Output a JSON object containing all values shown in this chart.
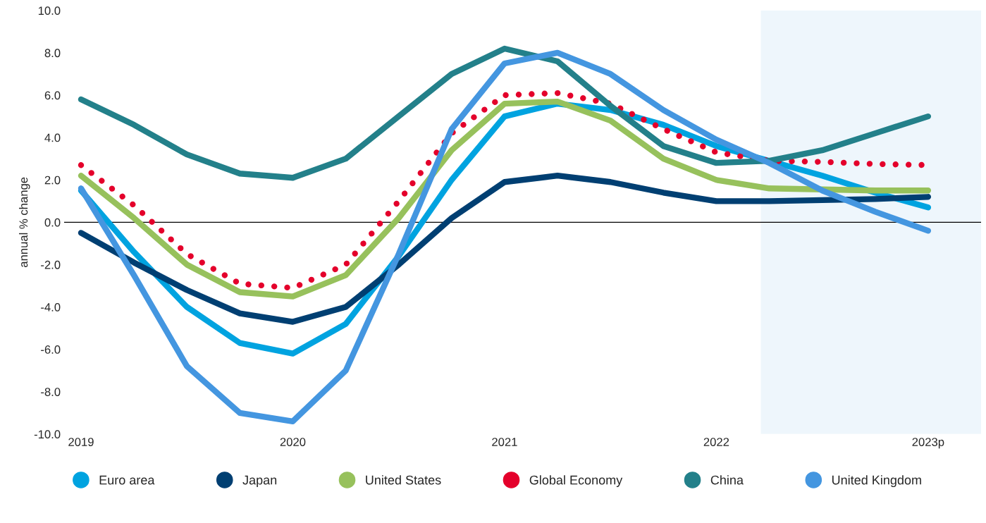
{
  "chart_data": {
    "type": "line",
    "ylabel": "annual % change",
    "x": [
      2019,
      2019.25,
      2019.5,
      2019.75,
      2020,
      2020.25,
      2020.5,
      2020.75,
      2021,
      2021.25,
      2021.5,
      2021.75,
      2022,
      2022.25,
      2022.5,
      2022.75,
      2023
    ],
    "series": [
      {
        "name": "Euro area",
        "color": "#00a3e0",
        "values": [
          1.5,
          -1.4,
          -4.0,
          -5.7,
          -6.2,
          -4.8,
          -1.6,
          2.0,
          5.0,
          5.6,
          5.3,
          4.6,
          3.6,
          2.9,
          2.2,
          1.4,
          0.7
        ]
      },
      {
        "name": "Japan",
        "color": "#003f72",
        "values": [
          -0.5,
          -1.9,
          -3.2,
          -4.3,
          -4.7,
          -4.0,
          -2.0,
          0.2,
          1.9,
          2.2,
          1.9,
          1.4,
          1.0,
          1.0,
          1.05,
          1.1,
          1.2
        ]
      },
      {
        "name": "United States",
        "color": "#97c15c",
        "values": [
          2.2,
          0.2,
          -2.0,
          -3.3,
          -3.5,
          -2.5,
          0.2,
          3.4,
          5.6,
          5.7,
          4.8,
          3.0,
          2.0,
          1.6,
          1.55,
          1.5,
          1.5
        ]
      },
      {
        "name": "Global Economy",
        "color": "#e4002b",
        "line_style": "dotted",
        "values": [
          2.7,
          0.8,
          -1.5,
          -2.9,
          -3.1,
          -2.0,
          1.0,
          4.2,
          6.0,
          6.1,
          5.6,
          4.4,
          3.3,
          2.9,
          2.85,
          2.75,
          2.7
        ]
      },
      {
        "name": "China",
        "color": "#23808a",
        "values": [
          5.8,
          4.6,
          3.2,
          2.3,
          2.1,
          3.0,
          5.0,
          7.0,
          8.2,
          7.6,
          5.5,
          3.6,
          2.8,
          2.9,
          3.4,
          4.2,
          5.0
        ]
      },
      {
        "name": "United Kingdom",
        "color": "#4496e0",
        "values": [
          1.6,
          -2.5,
          -6.8,
          -9.0,
          -9.4,
          -7.0,
          -1.5,
          4.4,
          7.5,
          8.0,
          7.0,
          5.3,
          3.9,
          2.8,
          1.5,
          0.5,
          -0.4
        ]
      }
    ],
    "xlim": [
      2018.92,
      2023.25
    ],
    "xticks": [
      2019,
      2020,
      2021,
      2022,
      {
        "value": 2023,
        "label": "2023p"
      }
    ],
    "ylim": [
      -10,
      10
    ],
    "yticks": [
      {
        "value": -10,
        "label": "-10.0"
      },
      {
        "value": -8,
        "label": "-8.0"
      },
      {
        "value": -6,
        "label": "-6.0"
      },
      {
        "value": -4,
        "label": "-4.0"
      },
      {
        "value": -2,
        "label": "-2.0"
      },
      {
        "value": 0,
        "label": "0.0"
      },
      {
        "value": 2,
        "label": "2.0"
      },
      {
        "value": 4,
        "label": "4.0"
      },
      {
        "value": 6,
        "label": "6.0"
      },
      {
        "value": 8,
        "label": "8.0"
      },
      {
        "value": 10,
        "label": "10.0"
      }
    ],
    "ref_lines": [
      {
        "axis": "y",
        "value": 0,
        "color": "#000000"
      }
    ],
    "bands": [
      {
        "axis": "x",
        "from": 2022.21,
        "to": 2023.25,
        "color": "#eef6fc"
      }
    ],
    "grid": false,
    "legend": "bottom"
  }
}
